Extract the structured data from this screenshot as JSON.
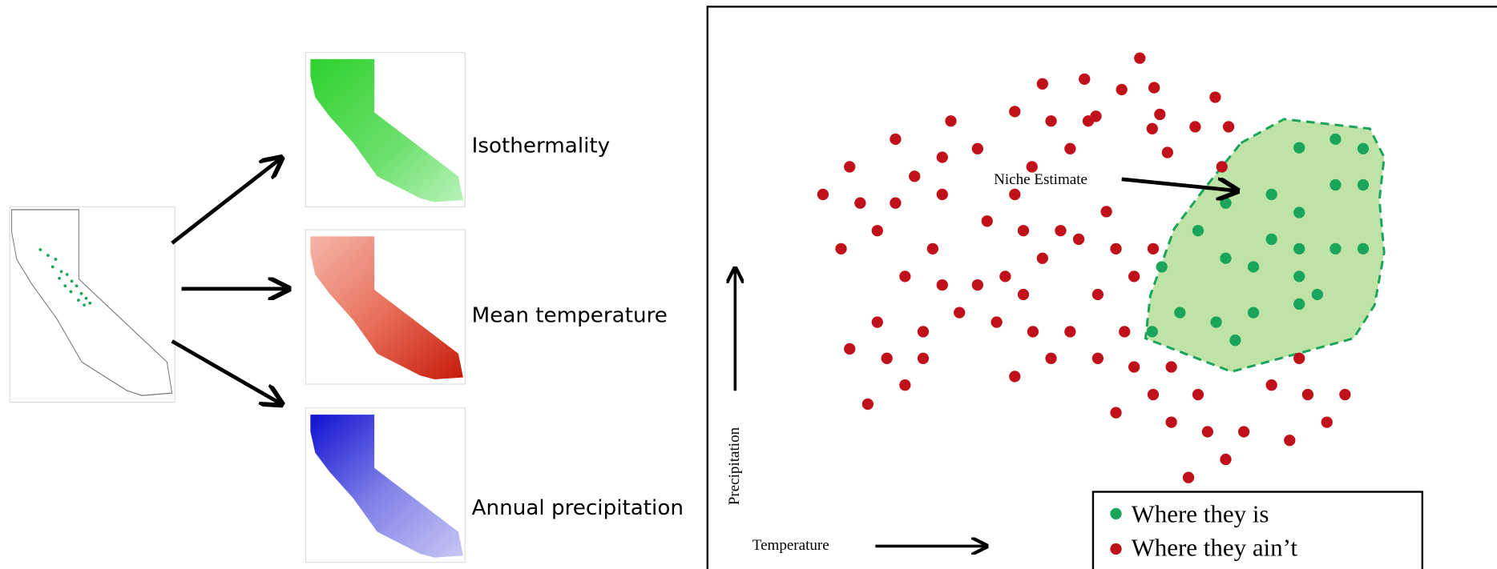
{
  "layers": [
    {
      "label": "Isothermality"
    },
    {
      "label": "Mean temperature"
    },
    {
      "label": "Annual precipitation"
    }
  ],
  "niche_plot": {
    "annotation": "Niche Estimate",
    "y_axis_label": "Precipitation",
    "x_axis_label": "Temperature",
    "legend": [
      {
        "label": "Where they is",
        "color": "#1aa55a"
      },
      {
        "label": "Where they ain’t",
        "color": "#c0111a"
      }
    ]
  }
}
